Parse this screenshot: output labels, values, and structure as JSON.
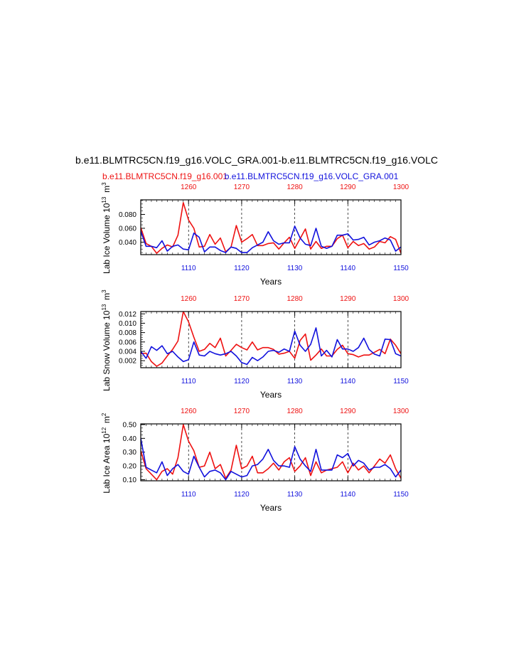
{
  "title": "b.e11.BLMTRC5CN.f19_g16.VOLC_GRA.001-b.e11.BLMTRC5CN.f19_g16.VOLC",
  "subtitle_red": "b.e11.BLMTRC5CN.f19_g16.001",
  "subtitle_blue": "b.e11.BLMTRC5CN.f19_g16.VOLC_GRA.001",
  "colors": {
    "red": "#ee1111",
    "blue": "#1111dd"
  },
  "chart_data": [
    {
      "type": "line",
      "ylabel": "Lab Ice Volume 10^13 m^3",
      "xlabel": "Years",
      "xlim": [
        1101,
        1150
      ],
      "ylim": [
        0.022,
        0.101
      ],
      "ytick_values": [
        0.04,
        0.06,
        0.08
      ],
      "ytick_labels": [
        "0.040",
        "0.060",
        "0.080"
      ],
      "bottom_ticks": [
        "1110",
        "1120",
        "1130",
        "1140",
        "1150"
      ],
      "top_ticks": [
        "1260",
        "1270",
        "1280",
        "1290",
        "1300"
      ],
      "x": [
        1101,
        1102,
        1103,
        1104,
        1105,
        1106,
        1107,
        1108,
        1109,
        1110,
        1111,
        1112,
        1113,
        1114,
        1115,
        1116,
        1117,
        1118,
        1119,
        1120,
        1121,
        1122,
        1123,
        1124,
        1125,
        1126,
        1127,
        1128,
        1129,
        1130,
        1131,
        1132,
        1133,
        1134,
        1135,
        1136,
        1137,
        1138,
        1139,
        1140,
        1141,
        1142,
        1143,
        1144,
        1145,
        1146,
        1147,
        1148,
        1149,
        1150
      ],
      "series": [
        {
          "name": "b.e11.BLMTRC5CN.f19_g16.001",
          "color": "#ee1111",
          "values": [
            0.061,
            0.038,
            0.034,
            0.024,
            0.031,
            0.036,
            0.033,
            0.05,
            0.097,
            0.072,
            0.06,
            0.033,
            0.034,
            0.051,
            0.037,
            0.046,
            0.026,
            0.033,
            0.064,
            0.04,
            0.045,
            0.051,
            0.035,
            0.035,
            0.038,
            0.039,
            0.03,
            0.039,
            0.047,
            0.031,
            0.045,
            0.059,
            0.03,
            0.041,
            0.031,
            0.034,
            0.034,
            0.045,
            0.05,
            0.032,
            0.041,
            0.035,
            0.038,
            0.03,
            0.033,
            0.041,
            0.039,
            0.048,
            0.044,
            0.024
          ]
        },
        {
          "name": "b.e11.BLMTRC5CN.f19_g16.VOLC_GRA.001",
          "color": "#1111dd",
          "values": [
            0.056,
            0.034,
            0.034,
            0.032,
            0.042,
            0.027,
            0.034,
            0.036,
            0.03,
            0.029,
            0.053,
            0.047,
            0.026,
            0.033,
            0.033,
            0.028,
            0.025,
            0.033,
            0.031,
            0.025,
            0.025,
            0.032,
            0.036,
            0.04,
            0.055,
            0.042,
            0.037,
            0.039,
            0.039,
            0.063,
            0.046,
            0.037,
            0.035,
            0.06,
            0.034,
            0.031,
            0.034,
            0.05,
            0.05,
            0.052,
            0.043,
            0.044,
            0.047,
            0.036,
            0.04,
            0.042,
            0.046,
            0.043,
            0.027,
            0.033
          ]
        }
      ]
    },
    {
      "type": "line",
      "ylabel": "Lab Snow Volume 10^13 m^3",
      "xlabel": "Years",
      "xlim": [
        1101,
        1150
      ],
      "ylim": [
        0.0005,
        0.0125
      ],
      "ytick_values": [
        0.002,
        0.004,
        0.006,
        0.008,
        0.01,
        0.012
      ],
      "ytick_labels": [
        "0.002",
        "0.004",
        "0.006",
        "0.008",
        "0.010",
        "0.012"
      ],
      "bottom_ticks": [
        "1110",
        "1120",
        "1130",
        "1140",
        "1150"
      ],
      "top_ticks": [
        "1260",
        "1270",
        "1280",
        "1290",
        "1300"
      ],
      "x": [
        1101,
        1102,
        1103,
        1104,
        1105,
        1106,
        1107,
        1108,
        1109,
        1110,
        1111,
        1112,
        1113,
        1114,
        1115,
        1116,
        1117,
        1118,
        1119,
        1120,
        1121,
        1122,
        1123,
        1124,
        1125,
        1126,
        1127,
        1128,
        1129,
        1130,
        1131,
        1132,
        1133,
        1134,
        1135,
        1136,
        1137,
        1138,
        1139,
        1140,
        1141,
        1142,
        1143,
        1144,
        1145,
        1146,
        1147,
        1148,
        1149,
        1150
      ],
      "series": [
        {
          "name": "b.e11.BLMTRC5CN.f19_g16.001",
          "color": "#ee1111",
          "values": [
            0.0035,
            0.0036,
            0.0018,
            0.0008,
            0.0015,
            0.003,
            0.0044,
            0.0062,
            0.0125,
            0.0103,
            0.007,
            0.004,
            0.0044,
            0.0057,
            0.0048,
            0.0068,
            0.003,
            0.0042,
            0.0055,
            0.0048,
            0.0043,
            0.006,
            0.0043,
            0.0048,
            0.0048,
            0.0044,
            0.0034,
            0.0036,
            0.004,
            0.0025,
            0.0063,
            0.0077,
            0.0021,
            0.0032,
            0.0045,
            0.003,
            0.003,
            0.0044,
            0.0053,
            0.0035,
            0.0033,
            0.0028,
            0.0032,
            0.0032,
            0.0038,
            0.0044,
            0.0035,
            0.0066,
            0.0053,
            0.0035
          ]
        },
        {
          "name": "b.e11.BLMTRC5CN.f19_g16.VOLC_GRA.001",
          "color": "#1111dd",
          "values": [
            0.004,
            0.0025,
            0.005,
            0.0042,
            0.0052,
            0.0035,
            0.004,
            0.0028,
            0.0018,
            0.0022,
            0.006,
            0.0032,
            0.003,
            0.004,
            0.0035,
            0.0032,
            0.0035,
            0.004,
            0.003,
            0.0016,
            0.0012,
            0.0027,
            0.002,
            0.0028,
            0.004,
            0.0042,
            0.0038,
            0.0045,
            0.004,
            0.0083,
            0.0053,
            0.004,
            0.0055,
            0.009,
            0.003,
            0.0042,
            0.0028,
            0.0065,
            0.0045,
            0.0045,
            0.004,
            0.0048,
            0.0068,
            0.0044,
            0.0034,
            0.003,
            0.0066,
            0.0065,
            0.0035,
            0.003
          ]
        }
      ]
    },
    {
      "type": "line",
      "ylabel": "Lab Ice Area 10^12 m^2",
      "xlabel": "Years",
      "xlim": [
        1101,
        1150
      ],
      "ylim": [
        0.092,
        0.505
      ],
      "ytick_values": [
        0.1,
        0.2,
        0.3,
        0.4,
        0.5
      ],
      "ytick_labels": [
        "0.10",
        "0.20",
        "0.30",
        "0.40",
        "0.50"
      ],
      "bottom_ticks": [
        "1110",
        "1120",
        "1130",
        "1140",
        "1150"
      ],
      "top_ticks": [
        "1260",
        "1270",
        "1280",
        "1290",
        "1300"
      ],
      "x": [
        1101,
        1102,
        1103,
        1104,
        1105,
        1106,
        1107,
        1108,
        1109,
        1110,
        1111,
        1112,
        1113,
        1114,
        1115,
        1116,
        1117,
        1118,
        1119,
        1120,
        1121,
        1122,
        1123,
        1124,
        1125,
        1126,
        1127,
        1128,
        1129,
        1130,
        1131,
        1132,
        1133,
        1134,
        1135,
        1136,
        1137,
        1138,
        1139,
        1140,
        1141,
        1142,
        1143,
        1144,
        1145,
        1146,
        1147,
        1148,
        1149,
        1150
      ],
      "series": [
        {
          "name": "b.e11.BLMTRC5CN.f19_g16.001",
          "color": "#ee1111",
          "values": [
            0.31,
            0.18,
            0.14,
            0.1,
            0.16,
            0.18,
            0.14,
            0.26,
            0.5,
            0.38,
            0.31,
            0.19,
            0.2,
            0.3,
            0.18,
            0.21,
            0.11,
            0.17,
            0.35,
            0.18,
            0.2,
            0.27,
            0.15,
            0.15,
            0.18,
            0.22,
            0.17,
            0.23,
            0.26,
            0.16,
            0.2,
            0.26,
            0.13,
            0.23,
            0.15,
            0.17,
            0.18,
            0.19,
            0.23,
            0.15,
            0.22,
            0.17,
            0.2,
            0.15,
            0.2,
            0.25,
            0.22,
            0.28,
            0.18,
            0.11
          ]
        },
        {
          "name": "b.e11.BLMTRC5CN.f19_g16.VOLC_GRA.001",
          "color": "#1111dd",
          "values": [
            0.4,
            0.19,
            0.17,
            0.15,
            0.23,
            0.13,
            0.18,
            0.21,
            0.16,
            0.14,
            0.27,
            0.19,
            0.12,
            0.16,
            0.17,
            0.15,
            0.1,
            0.16,
            0.14,
            0.12,
            0.13,
            0.2,
            0.21,
            0.25,
            0.32,
            0.24,
            0.2,
            0.2,
            0.19,
            0.34,
            0.25,
            0.2,
            0.16,
            0.32,
            0.17,
            0.17,
            0.17,
            0.28,
            0.26,
            0.29,
            0.2,
            0.24,
            0.22,
            0.17,
            0.19,
            0.19,
            0.21,
            0.18,
            0.12,
            0.17
          ]
        }
      ]
    }
  ]
}
